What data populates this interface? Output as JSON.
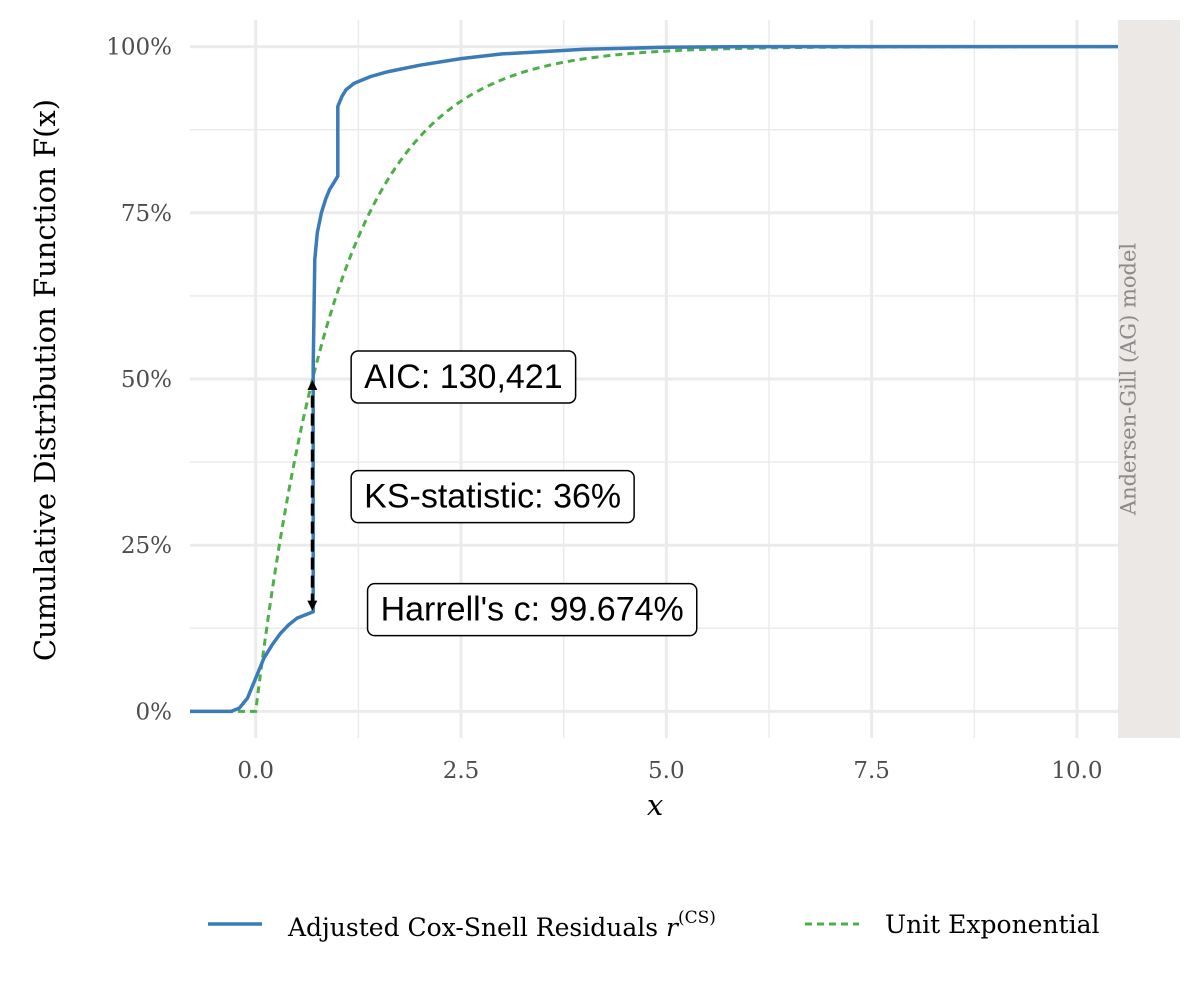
{
  "chart_data": {
    "type": "line",
    "xlabel": "x",
    "ylabel": "Cumulative Distribution Function F(x)",
    "xlim": [
      -0.8,
      10.5
    ],
    "ylim": [
      -0.04,
      1.04
    ],
    "x_ticks": [
      0.0,
      2.5,
      5.0,
      7.5,
      10.0
    ],
    "x_tick_labels": [
      "0.0",
      "2.5",
      "5.0",
      "7.5",
      "10.0"
    ],
    "y_ticks": [
      0,
      0.25,
      0.5,
      0.75,
      1.0
    ],
    "y_tick_labels": [
      "0%",
      "25%",
      "50%",
      "75%",
      "100%"
    ],
    "grid": true,
    "facet_label": "Andersen-Gill (AG) model",
    "series": [
      {
        "name": "Adjusted Cox-Snell Residuals r^(CS)",
        "style": "solid",
        "color": "#3a7bb8",
        "points": [
          [
            -0.8,
            0
          ],
          [
            -0.3,
            0
          ],
          [
            -0.2,
            0.005
          ],
          [
            -0.1,
            0.02
          ],
          [
            0.0,
            0.05
          ],
          [
            0.1,
            0.08
          ],
          [
            0.2,
            0.1
          ],
          [
            0.3,
            0.117
          ],
          [
            0.4,
            0.13
          ],
          [
            0.5,
            0.14
          ],
          [
            0.6,
            0.145
          ],
          [
            0.7,
            0.15
          ],
          [
            0.7,
            0.52
          ],
          [
            0.71,
            0.6
          ],
          [
            0.72,
            0.68
          ],
          [
            0.75,
            0.72
          ],
          [
            0.8,
            0.75
          ],
          [
            0.85,
            0.77
          ],
          [
            0.9,
            0.785
          ],
          [
            0.95,
            0.795
          ],
          [
            1.0,
            0.805
          ],
          [
            1.0,
            0.91
          ],
          [
            1.05,
            0.925
          ],
          [
            1.1,
            0.935
          ],
          [
            1.2,
            0.945
          ],
          [
            1.4,
            0.955
          ],
          [
            1.6,
            0.962
          ],
          [
            2.0,
            0.972
          ],
          [
            2.5,
            0.982
          ],
          [
            3.0,
            0.989
          ],
          [
            4.0,
            0.996
          ],
          [
            5.0,
            0.999
          ],
          [
            6.0,
            1.0
          ],
          [
            10.5,
            1.0
          ]
        ]
      },
      {
        "name": "Unit Exponential",
        "style": "dashed",
        "color": "#4daf4a",
        "function": "1 - exp(-x)",
        "x_start": 0.0,
        "x_end": 10.5
      }
    ],
    "annotations": [
      {
        "text": "AIC: 130,421",
        "x": 1.15,
        "y": 0.5
      },
      {
        "text": "KS-statistic: 36%",
        "x": 1.15,
        "y": 0.32
      },
      {
        "text": "Harrell's c: 99.674%",
        "x": 1.35,
        "y": 0.15
      }
    ],
    "ks_arrow": {
      "x": 0.69,
      "y_from": 0.15,
      "y_to": 0.5
    },
    "legend": {
      "position": "bottom",
      "items": [
        {
          "label": "Adjusted Cox-Snell Residuals ",
          "sup": "(CS)",
          "math": "r",
          "style": "solid",
          "color": "#3a7bb8"
        },
        {
          "label": "Unit Exponential",
          "style": "dashed",
          "color": "#4daf4a"
        }
      ]
    }
  }
}
